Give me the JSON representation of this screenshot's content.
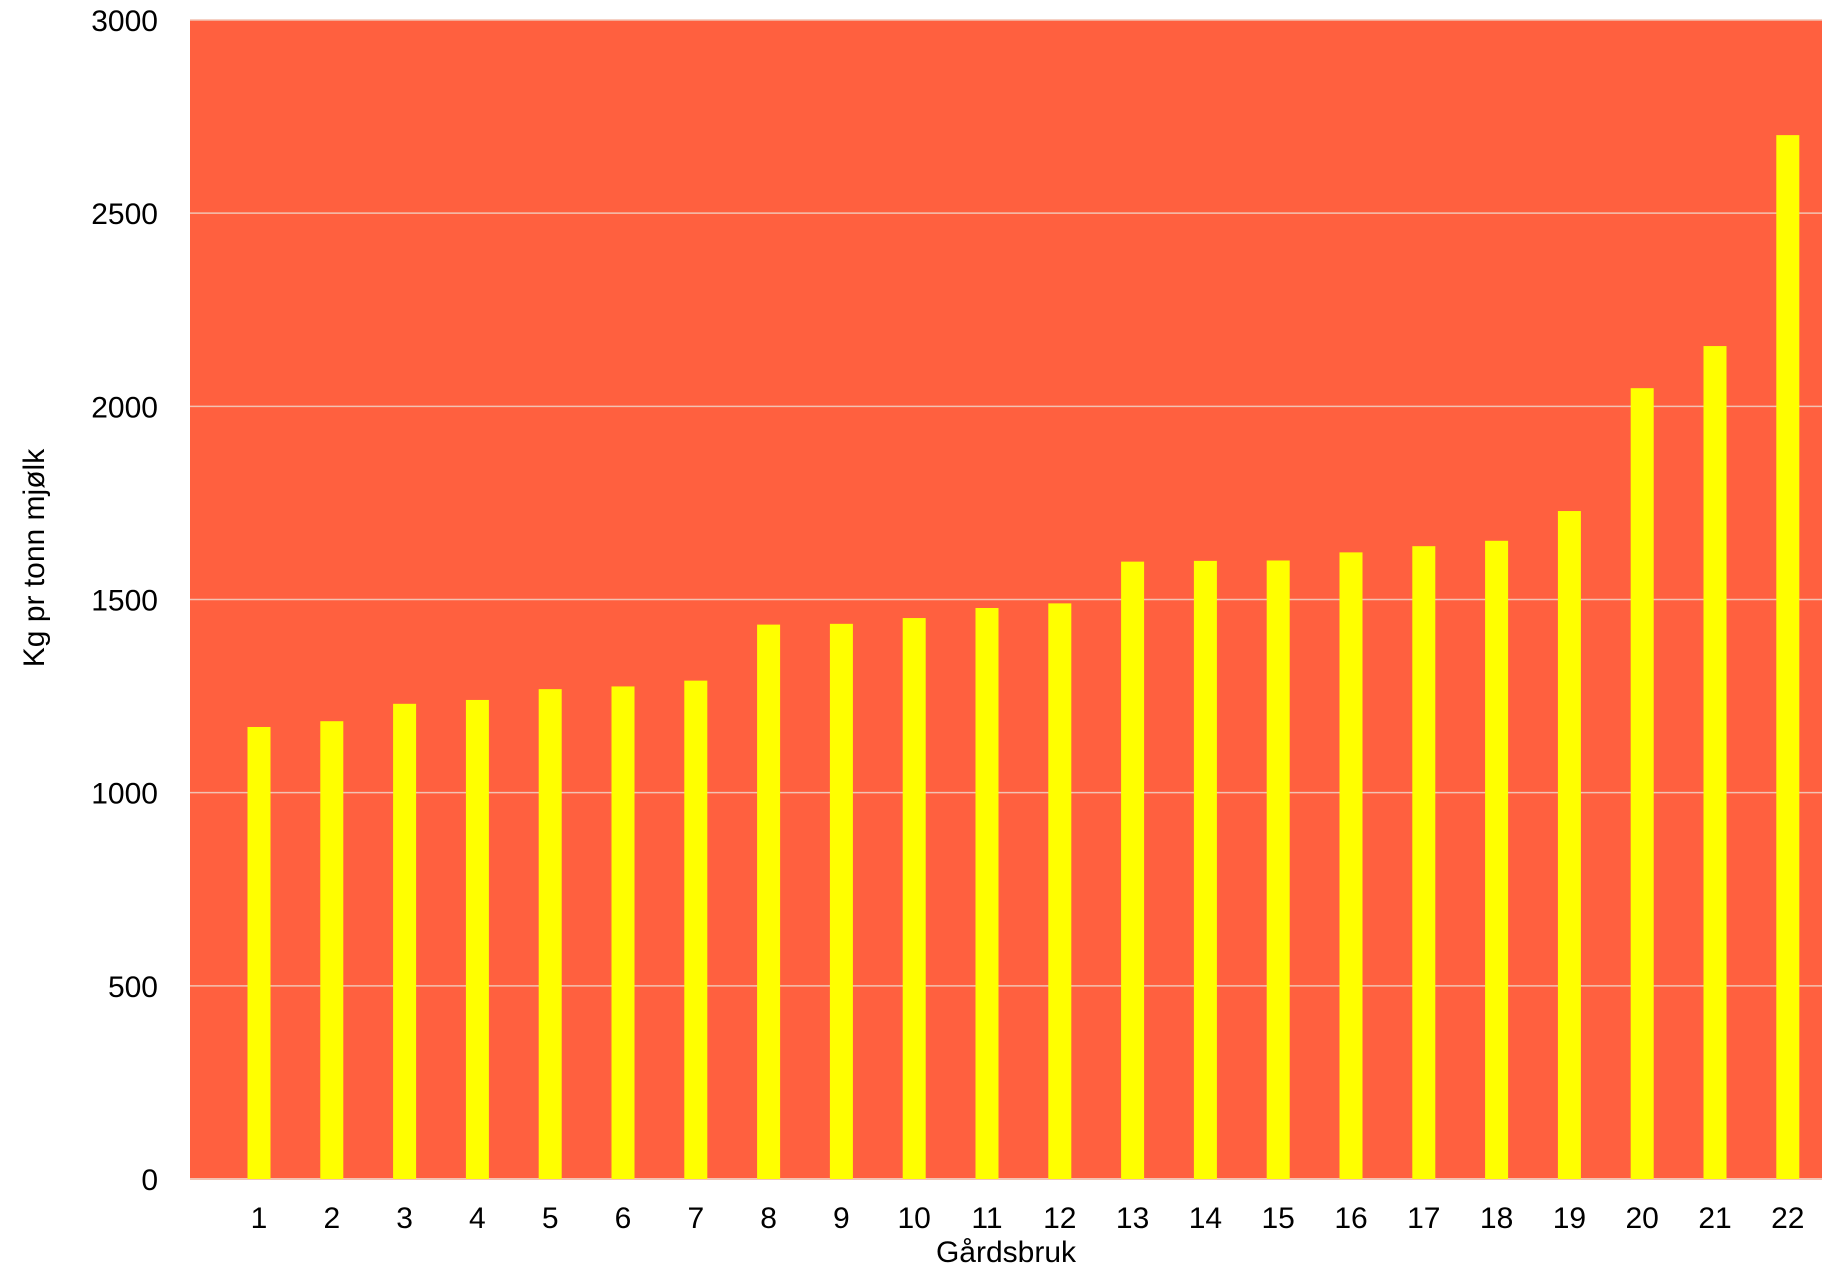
{
  "chart_data": {
    "type": "bar",
    "title": "",
    "xlabel": "Gårdsbruk",
    "ylabel": "Kg pr tonn mjølk",
    "ylim": [
      0,
      3000
    ],
    "yticks": [
      0,
      500,
      1000,
      1500,
      2000,
      2500,
      3000
    ],
    "grid": true,
    "categories": [
      "1",
      "2",
      "3",
      "4",
      "5",
      "6",
      "7",
      "8",
      "9",
      "10",
      "11",
      "12",
      "13",
      "14",
      "15",
      "16",
      "17",
      "18",
      "19",
      "20",
      "21",
      "22"
    ],
    "values": [
      1170,
      1185,
      1230,
      1240,
      1268,
      1275,
      1290,
      1435,
      1437,
      1452,
      1478,
      1490,
      1598,
      1600,
      1601,
      1622,
      1638,
      1652,
      1729,
      2047,
      2156,
      2702
    ],
    "colors": {
      "plot_background": "#FF603F",
      "bar": "#FFFF00",
      "gridline": "#F2C2B2"
    }
  }
}
